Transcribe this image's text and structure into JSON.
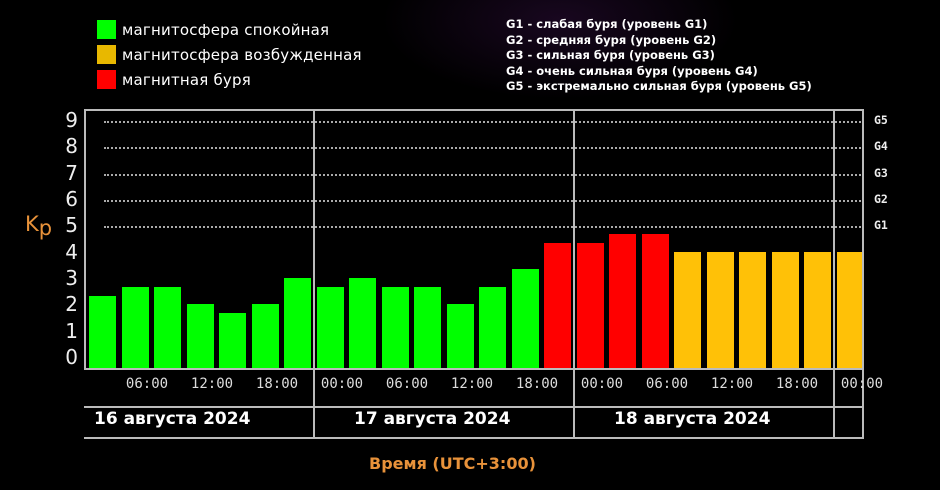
{
  "legend": [
    {
      "label": "магнитосфера спокойная",
      "color": "#00ff00"
    },
    {
      "label": "магнитосфера возбужденная",
      "color": "#ffc107"
    },
    {
      "label": "магнитная буря",
      "color": "#ff0000"
    }
  ],
  "g_legend": [
    "G1 - слабая буря (уровень G1)",
    "G2 - средняя буря (уровень G2)",
    "G3 - сильная буря (уровень G3)",
    "G4 - очень сильная буря (уровень G4)",
    "G5 - экстремально сильная буря (уровень G5)"
  ],
  "axis": {
    "ylabel_main": "K",
    "ylabel_sub": "p",
    "xlabel": "Время (UTC+3:00)",
    "y_ticks": [
      "0",
      "1",
      "2",
      "3",
      "4",
      "5",
      "6",
      "7",
      "8",
      "9"
    ],
    "g_ticks": [
      "G1",
      "G2",
      "G3",
      "G4",
      "G5"
    ],
    "x_ticks": [
      "06:00",
      "12:00",
      "18:00",
      "00:00",
      "06:00",
      "12:00",
      "18:00",
      "00:00",
      "06:00",
      "12:00",
      "18:00",
      "00:00"
    ],
    "dates": [
      "16 августа 2024",
      "17 августа 2024",
      "18 августа 2024"
    ]
  },
  "chart_data": {
    "type": "bar",
    "title": "",
    "xlabel": "Время (UTC+3:00)",
    "ylabel": "Kp",
    "ylim": [
      0,
      9
    ],
    "grid": "dotted",
    "legend_position": "top",
    "secondary_y_ticks": {
      "5": "G1",
      "6": "G2",
      "7": "G3",
      "8": "G4",
      "9": "G5"
    },
    "categories": [
      "16.08 00-03",
      "16.08 03-06",
      "16.08 06-09",
      "16.08 09-12",
      "16.08 12-15",
      "16.08 15-18",
      "16.08 18-21",
      "16.08 21-24",
      "17.08 00-03",
      "17.08 03-06",
      "17.08 06-09",
      "17.08 09-12",
      "17.08 12-15",
      "17.08 15-18",
      "17.08 18-21",
      "17.08 21-24",
      "18.08 00-03",
      "18.08 03-06",
      "18.08 06-09",
      "18.08 09-12",
      "18.08 12-15",
      "18.08 15-18",
      "18.08 18-21",
      "18.08 21-24"
    ],
    "values": [
      2.33,
      2.67,
      2.67,
      2.0,
      1.67,
      2.0,
      3.0,
      2.67,
      3.0,
      2.67,
      2.67,
      2.0,
      2.67,
      3.33,
      4.33,
      4.33,
      4.67,
      4.67,
      4.0,
      4.0,
      4.0,
      4.0,
      4.0,
      4.0
    ],
    "colors": [
      "#00ff00",
      "#00ff00",
      "#00ff00",
      "#00ff00",
      "#00ff00",
      "#00ff00",
      "#00ff00",
      "#00ff00",
      "#00ff00",
      "#00ff00",
      "#00ff00",
      "#00ff00",
      "#00ff00",
      "#00ff00",
      "#ff0000",
      "#ff0000",
      "#ff0000",
      "#ff0000",
      "#ffc107",
      "#ffc107",
      "#ffc107",
      "#ffc107",
      "#ffc107",
      "#ffc107"
    ],
    "bar_offset_hours": 1.5
  }
}
